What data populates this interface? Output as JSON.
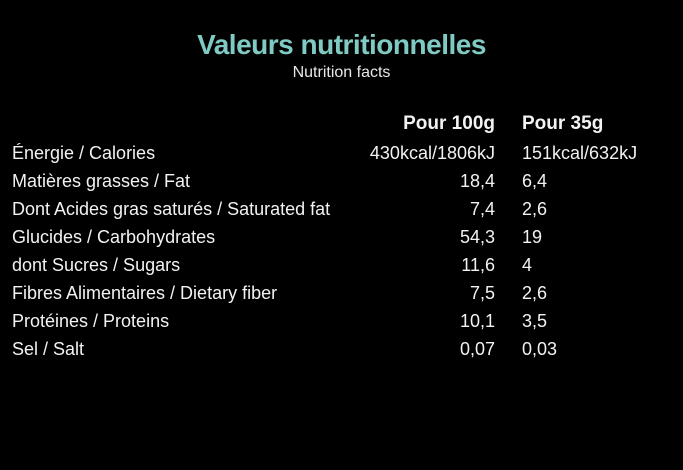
{
  "title": "Valeurs nutritionnelles",
  "subtitle": "Nutrition facts",
  "title_color": "#7fcac3",
  "columns": [
    "Pour 100g",
    "Pour 35g"
  ],
  "rows": [
    {
      "label": "Énergie / Calories",
      "per100": "430kcal/1806kJ",
      "per35": "151kcal/632kJ"
    },
    {
      "label": "Matières grasses / Fat",
      "per100": "18,4",
      "per35": "6,4"
    },
    {
      "label": "Dont Acides gras saturés / Saturated fat",
      "per100": "7,4",
      "per35": "2,6"
    },
    {
      "label": "Glucides / Carbohydrates",
      "per100": "54,3",
      "per35": "19"
    },
    {
      "label": "dont Sucres / Sugars",
      "per100": "11,6",
      "per35": "4"
    },
    {
      "label": "Fibres Alimentaires / Dietary fiber",
      "per100": "7,5",
      "per35": "2,6"
    },
    {
      "label": "Protéines / Proteins",
      "per100": "10,1",
      "per35": "3,5"
    },
    {
      "label": "Sel / Salt",
      "per100": "0,07",
      "per35": "0,03"
    }
  ]
}
